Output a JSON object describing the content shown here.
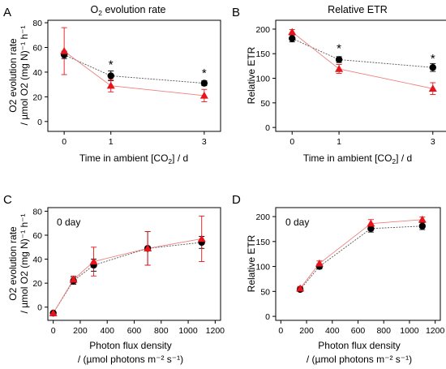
{
  "colors": {
    "black_series": "#000000",
    "red_series": "#e8141b",
    "black_line": "#555555",
    "red_line": "#f08080",
    "axis": "#000000"
  },
  "chart_data": [
    {
      "panel": "A",
      "title": "O2 evolution rate",
      "title_main": "O",
      "title_sub": "2",
      "title_rest": " evolution rate",
      "type": "line",
      "xlabel": "Time in ambient [CO2] / d",
      "xlabel_parts": {
        "a": "Time in ambient [CO",
        "sub": "2",
        "b": "] / d"
      },
      "ylabel_line1": "O2 evolution rate",
      "ylabel_line2": "/ µmol O2 (mg N)⁻¹ h⁻¹",
      "xlim": [
        -0.35,
        3.35
      ],
      "ylim": [
        -8,
        82
      ],
      "xticks": [
        0,
        1,
        3
      ],
      "yticks": [
        0,
        20,
        40,
        60,
        80
      ],
      "series": [
        {
          "marker": "circle",
          "x": [
            0,
            1,
            3
          ],
          "values": [
            54,
            37,
            31
          ],
          "err": [
            3,
            4,
            2
          ]
        },
        {
          "marker": "triangle",
          "x": [
            0,
            1,
            3
          ],
          "values": [
            57,
            29,
            21
          ],
          "err": [
            19,
            5,
            5
          ]
        }
      ],
      "annotations": [
        {
          "text": "*",
          "x": 1,
          "y": 47
        },
        {
          "text": "*",
          "x": 3,
          "y": 40
        }
      ]
    },
    {
      "panel": "B",
      "title": "Relative ETR",
      "type": "line",
      "xlabel": "Time in ambient [CO2] / d",
      "xlabel_parts": {
        "a": "Time in ambient [CO",
        "sub": "2",
        "b": "] / d"
      },
      "ylabel_line1": "Relative ETR",
      "xlim": [
        -0.35,
        3.35
      ],
      "ylim": [
        -8,
        218
      ],
      "xticks": [
        0,
        1,
        3
      ],
      "yticks": [
        0,
        50,
        100,
        150,
        200
      ],
      "series": [
        {
          "marker": "circle",
          "x": [
            0,
            1,
            3
          ],
          "values": [
            181,
            138,
            122
          ],
          "err": [
            7,
            6,
            8
          ]
        },
        {
          "marker": "triangle",
          "x": [
            0,
            1,
            3
          ],
          "values": [
            194,
            119,
            79
          ],
          "err": [
            5,
            9,
            12
          ]
        }
      ],
      "annotations": [
        {
          "text": "*",
          "x": 1,
          "y": 163
        },
        {
          "text": "*",
          "x": 3,
          "y": 142
        }
      ]
    },
    {
      "panel": "C",
      "label": "0 day",
      "type": "line",
      "xlabel_line1": "Photon flux density",
      "xlabel_line2": "/ (µmol photons m⁻² s⁻¹)",
      "ylabel_line1": "O2 evolution rate",
      "ylabel_line2": "/ µmol O2 (mg N)⁻¹ h⁻¹",
      "xlim": [
        -40,
        1240
      ],
      "ylim": [
        -11,
        83
      ],
      "xticks": [
        0,
        200,
        400,
        600,
        800,
        1000,
        1200
      ],
      "yticks": [
        0,
        20,
        40,
        60,
        80
      ],
      "series": [
        {
          "marker": "circle",
          "x": [
            0,
            150,
            300,
            700,
            1100
          ],
          "values": [
            -5,
            22,
            35,
            49,
            54
          ],
          "err": [
            1,
            3,
            5,
            14,
            5
          ]
        },
        {
          "marker": "triangle",
          "x": [
            0,
            150,
            300,
            700,
            1100
          ],
          "values": [
            -5,
            23,
            38,
            49,
            57
          ],
          "err": [
            1,
            3,
            12,
            14,
            19
          ]
        }
      ]
    },
    {
      "panel": "D",
      "label": "0 day",
      "type": "line",
      "xlabel_line1": "Photon flux density",
      "xlabel_line2": "/ (µmol photons m⁻² s⁻¹)",
      "ylabel_line1": "Relative ETR",
      "xlim": [
        -40,
        1240
      ],
      "ylim": [
        -8,
        218
      ],
      "xticks": [
        0,
        200,
        400,
        600,
        800,
        1000,
        1200
      ],
      "yticks": [
        0,
        50,
        100,
        150,
        200
      ],
      "series": [
        {
          "marker": "circle",
          "x": [
            150,
            300,
            700,
            1100
          ],
          "values": [
            54,
            100,
            176,
            181
          ],
          "err": [
            4,
            5,
            7,
            7
          ]
        },
        {
          "marker": "triangle",
          "x": [
            150,
            300,
            700,
            1100
          ],
          "values": [
            56,
            106,
            186,
            194
          ],
          "err": [
            4,
            5,
            8,
            5
          ]
        }
      ]
    }
  ]
}
